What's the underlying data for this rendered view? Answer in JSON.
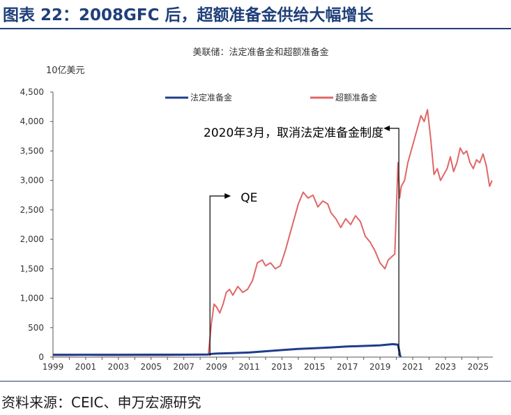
{
  "figure_title": "图表 22：2008GFC 后，超额准备金供给大幅增长",
  "source_note": "资料来源：CEIC、申万宏源研究",
  "colors": {
    "accent": "#1f3f7a",
    "required_line": "#1f3d8c",
    "excess_line": "#e06666"
  },
  "chart_data": {
    "type": "line",
    "title": "美联储：法定准备金和超额准备金",
    "ylabel": "10亿美元",
    "xlabel": "",
    "xlim": [
      1999,
      2025.9
    ],
    "ylim": [
      0,
      4500
    ],
    "yticks": [
      0,
      500,
      1000,
      1500,
      2000,
      2500,
      3000,
      3500,
      4000,
      4500
    ],
    "ytick_labels": [
      "0",
      "500",
      "1,000",
      "1,500",
      "2,000",
      "2,500",
      "3,000",
      "3,500",
      "4,000",
      "4,500"
    ],
    "xticks": [
      1999,
      2001,
      2003,
      2005,
      2007,
      2009,
      2011,
      2013,
      2015,
      2017,
      2019,
      2021,
      2023,
      2025
    ],
    "xtick_labels": [
      "1999",
      "2001",
      "2003",
      "2005",
      "2007",
      "2009",
      "2011",
      "2013",
      "2015",
      "2017",
      "2019",
      "2021",
      "2023",
      "2025"
    ],
    "grid": false,
    "legend_position": "top",
    "series": [
      {
        "name": "法定准备金",
        "x": [
          1999,
          2001,
          2003,
          2005,
          2007,
          2008.5,
          2008.7,
          2009,
          2010,
          2011,
          2012,
          2013,
          2014,
          2015,
          2016,
          2017,
          2018,
          2019,
          2019.8,
          2020.1,
          2020.25
        ],
        "y": [
          40,
          40,
          40,
          42,
          42,
          45,
          55,
          60,
          68,
          78,
          100,
          120,
          140,
          150,
          165,
          180,
          190,
          200,
          220,
          210,
          0
        ]
      },
      {
        "name": "超额准备金",
        "x": [
          1999,
          2000,
          2001,
          2002,
          2003,
          2004,
          2005,
          2006,
          2007,
          2008.5,
          2008.7,
          2008.85,
          2009,
          2009.2,
          2009.4,
          2009.6,
          2009.8,
          2010,
          2010.3,
          2010.6,
          2010.9,
          2011.2,
          2011.5,
          2011.8,
          2012,
          2012.3,
          2012.6,
          2012.9,
          2013.2,
          2013.5,
          2013.8,
          2014,
          2014.3,
          2014.6,
          2014.9,
          2015.2,
          2015.5,
          2015.8,
          2016,
          2016.3,
          2016.6,
          2016.9,
          2017.2,
          2017.5,
          2017.8,
          2018.1,
          2018.4,
          2018.7,
          2019,
          2019.3,
          2019.5,
          2019.7,
          2019.9,
          2020.1,
          2020.2,
          2020.3,
          2020.5,
          2020.7,
          2020.9,
          2021.1,
          2021.3,
          2021.5,
          2021.7,
          2021.9,
          2022.1,
          2022.3,
          2022.5,
          2022.7,
          2022.9,
          2023.1,
          2023.3,
          2023.5,
          2023.7,
          2023.9,
          2024.1,
          2024.3,
          2024.5,
          2024.7,
          2024.9,
          2025.1,
          2025.3,
          2025.5,
          2025.7,
          2025.85
        ],
        "y": [
          30,
          30,
          35,
          30,
          30,
          30,
          30,
          30,
          35,
          40,
          600,
          900,
          850,
          750,
          900,
          1100,
          1150,
          1050,
          1200,
          1100,
          1150,
          1300,
          1600,
          1650,
          1550,
          1600,
          1500,
          1550,
          1800,
          2100,
          2400,
          2600,
          2800,
          2700,
          2750,
          2550,
          2650,
          2600,
          2450,
          2350,
          2200,
          2350,
          2250,
          2400,
          2300,
          2050,
          1950,
          1800,
          1600,
          1500,
          1650,
          1700,
          1750,
          3300,
          2700,
          2900,
          3000,
          3300,
          3500,
          3700,
          3900,
          4100,
          4000,
          4200,
          3700,
          3100,
          3200,
          3000,
          3100,
          3200,
          3400,
          3150,
          3300,
          3550,
          3450,
          3500,
          3300,
          3200,
          3350,
          3300,
          3450,
          3250,
          2900,
          3000
        ]
      }
    ],
    "annotations": [
      {
        "text": "QE",
        "x": 2008.6
      },
      {
        "text": "2020年3月，取消法定准备金制度",
        "x": 2020.15
      }
    ]
  }
}
